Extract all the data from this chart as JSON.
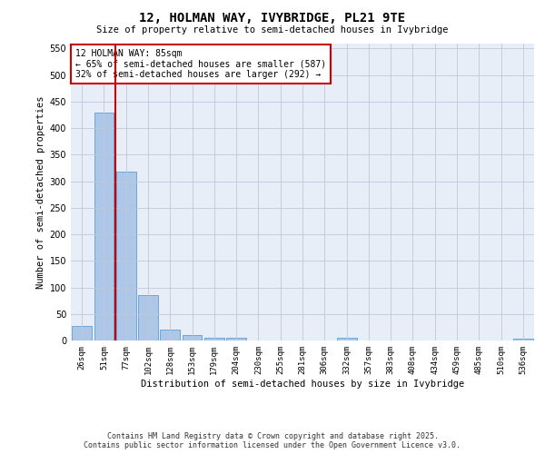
{
  "title": "12, HOLMAN WAY, IVYBRIDGE, PL21 9TE",
  "subtitle": "Size of property relative to semi-detached houses in Ivybridge",
  "xlabel": "Distribution of semi-detached houses by size in Ivybridge",
  "ylabel": "Number of semi-detached properties",
  "categories": [
    "26sqm",
    "51sqm",
    "77sqm",
    "102sqm",
    "128sqm",
    "153sqm",
    "179sqm",
    "204sqm",
    "230sqm",
    "255sqm",
    "281sqm",
    "306sqm",
    "332sqm",
    "357sqm",
    "383sqm",
    "408sqm",
    "434sqm",
    "459sqm",
    "485sqm",
    "510sqm",
    "536sqm"
  ],
  "values": [
    27,
    430,
    318,
    85,
    21,
    10,
    5,
    5,
    0,
    0,
    0,
    0,
    5,
    0,
    0,
    0,
    0,
    0,
    0,
    0,
    4
  ],
  "bar_color": "#aec6e8",
  "bar_edge_color": "#5a9fd4",
  "vline_color": "#cc0000",
  "annotation_text": "12 HOLMAN WAY: 85sqm\n← 65% of semi-detached houses are smaller (587)\n32% of semi-detached houses are larger (292) →",
  "annotation_box_color": "#ffffff",
  "annotation_box_edge": "#cc0000",
  "ylim": [
    0,
    560
  ],
  "yticks": [
    0,
    50,
    100,
    150,
    200,
    250,
    300,
    350,
    400,
    450,
    500,
    550
  ],
  "background_color": "#e8eef8",
  "footer_line1": "Contains HM Land Registry data © Crown copyright and database right 2025.",
  "footer_line2": "Contains public sector information licensed under the Open Government Licence v3.0."
}
